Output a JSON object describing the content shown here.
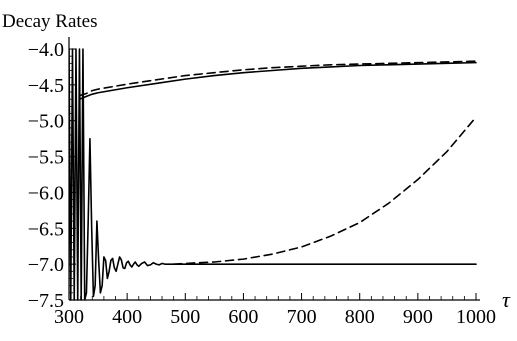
{
  "chart_data": {
    "type": "line",
    "title": "Decay Rates",
    "xlabel": "τ",
    "ylabel": "",
    "xlim": [
      300,
      1000
    ],
    "ylim": [
      -7.5,
      -4.0
    ],
    "x_ticks": [
      300,
      400,
      500,
      600,
      700,
      800,
      900,
      1000
    ],
    "y_ticks": [
      -4.0,
      -4.5,
      -5.0,
      -5.5,
      -6.0,
      -6.5,
      -7.0,
      -7.5
    ],
    "x_tick_labels": [
      "300",
      "400",
      "500",
      "600",
      "700",
      "800",
      "900",
      "1000"
    ],
    "y_tick_labels": [
      "−4.0",
      "−4.5",
      "−5.0",
      "−5.5",
      "−6.0",
      "−6.5",
      "−7.0",
      "−7.5"
    ],
    "grid": false,
    "legend": "none",
    "series": [
      {
        "style": "dashed",
        "x": [
          318,
          330,
          340,
          350,
          400,
          450,
          500,
          550,
          600,
          650,
          700,
          750,
          800,
          850,
          900,
          950,
          1000
        ],
        "y": [
          -4.65,
          -4.62,
          -4.58,
          -4.56,
          -4.49,
          -4.43,
          -4.37,
          -4.33,
          -4.29,
          -4.26,
          -4.24,
          -4.22,
          -4.21,
          -4.2,
          -4.19,
          -4.18,
          -4.17
        ]
      },
      {
        "style": "solid",
        "x": [
          318,
          330,
          340,
          350,
          400,
          450,
          500,
          550,
          600,
          650,
          700,
          750,
          800,
          850,
          900,
          950,
          1000
        ],
        "y": [
          -4.7,
          -4.66,
          -4.63,
          -4.61,
          -4.54,
          -4.48,
          -4.42,
          -4.37,
          -4.33,
          -4.3,
          -4.27,
          -4.25,
          -4.23,
          -4.22,
          -4.21,
          -4.2,
          -4.19
        ]
      },
      {
        "style": "dashed",
        "x": [
          480,
          500,
          550,
          600,
          650,
          700,
          750,
          800,
          850,
          900,
          950,
          1000
        ],
        "y": [
          -7.0,
          -6.99,
          -6.97,
          -6.93,
          -6.86,
          -6.76,
          -6.61,
          -6.42,
          -6.15,
          -5.82,
          -5.43,
          -4.95
        ]
      },
      {
        "style": "solid",
        "x": [
          480,
          500,
          550,
          600,
          650,
          700,
          750,
          800,
          850,
          900,
          950,
          1000
        ],
        "y": [
          -7.0,
          -7.0,
          -7.0,
          -7.0,
          -7.0,
          -7.0,
          -7.0,
          -7.0,
          -7.0,
          -7.0,
          -7.0,
          -7.0
        ]
      },
      {
        "style": "solid",
        "x": [
          300,
          303,
          306,
          309,
          312,
          315,
          318,
          321,
          324,
          327,
          330,
          333,
          336,
          339,
          342,
          345,
          348,
          351,
          354,
          357,
          360,
          363,
          366,
          369,
          372,
          375,
          378,
          381,
          384,
          387,
          390,
          393,
          396,
          399,
          402,
          405,
          408,
          411,
          414,
          417,
          420,
          425,
          430,
          435,
          440,
          445,
          450,
          455,
          460,
          465,
          470,
          480
        ],
        "y": [
          -4.0,
          -7.5,
          -4.0,
          -7.5,
          -4.0,
          -7.5,
          -4.0,
          -7.5,
          -4.0,
          -7.5,
          -7.4,
          -6.4,
          -5.25,
          -6.5,
          -7.45,
          -7.3,
          -6.4,
          -6.95,
          -7.4,
          -7.3,
          -6.9,
          -6.95,
          -7.2,
          -7.1,
          -6.95,
          -6.92,
          -7.05,
          -7.1,
          -7.0,
          -6.9,
          -6.94,
          -7.05,
          -7.06,
          -6.98,
          -6.96,
          -7.01,
          -7.04,
          -7.0,
          -6.97,
          -7.01,
          -7.03,
          -6.99,
          -6.97,
          -7.02,
          -7.01,
          -6.98,
          -7.0,
          -7.01,
          -6.99,
          -7.0,
          -7.0,
          -7.0
        ]
      }
    ]
  }
}
